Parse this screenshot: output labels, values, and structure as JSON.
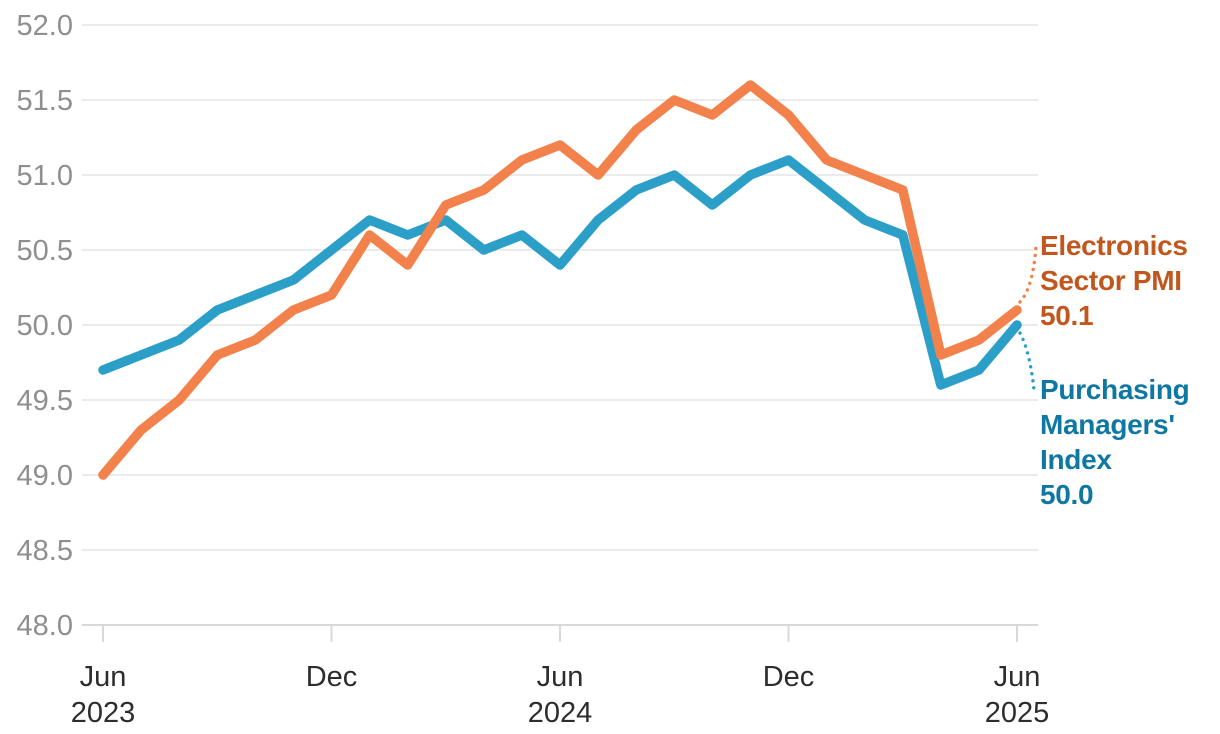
{
  "chart_data": {
    "type": "line",
    "x": [
      "Jun 2023",
      "Jul 2023",
      "Aug 2023",
      "Sep 2023",
      "Oct 2023",
      "Nov 2023",
      "Dec 2023",
      "Jan 2024",
      "Feb 2024",
      "Mar 2024",
      "Apr 2024",
      "May 2024",
      "Jun 2024",
      "Jul 2024",
      "Aug 2024",
      "Sep 2024",
      "Oct 2024",
      "Nov 2024",
      "Dec 2024",
      "Jan 2025",
      "Feb 2025",
      "Mar 2025",
      "Apr 2025",
      "May 2025",
      "Jun 2025"
    ],
    "series": [
      {
        "name": "Purchasing Managers' Index",
        "color": "#2B9FC7",
        "values": [
          49.7,
          49.8,
          49.9,
          50.1,
          50.2,
          50.3,
          50.5,
          50.7,
          50.6,
          50.7,
          50.5,
          50.6,
          50.4,
          50.7,
          50.9,
          51.0,
          50.8,
          51.0,
          51.1,
          50.9,
          50.7,
          50.6,
          49.6,
          49.7,
          50.0
        ]
      },
      {
        "name": "Electronics Sector PMI",
        "color": "#F2814B",
        "values": [
          49.0,
          49.3,
          49.5,
          49.8,
          49.9,
          50.1,
          50.2,
          50.6,
          50.4,
          50.8,
          50.9,
          51.1,
          51.2,
          51.0,
          51.3,
          51.5,
          51.4,
          51.6,
          51.4,
          51.1,
          51.0,
          50.9,
          49.8,
          49.9,
          50.1
        ]
      }
    ],
    "title": "",
    "xlabel": "",
    "ylabel": "",
    "ylim": [
      48.0,
      52.0
    ],
    "grid": true,
    "legend_position": "right-end-annotations",
    "y_ticks": [
      "52.0",
      "51.5",
      "51.0",
      "50.5",
      "50.0",
      "49.5",
      "49.0",
      "48.5",
      "48.0"
    ],
    "x_ticks": [
      {
        "month": "Jun",
        "year": "2023",
        "index": 0
      },
      {
        "month": "Dec",
        "year": "",
        "index": 6
      },
      {
        "month": "Jun",
        "year": "2024",
        "index": 12
      },
      {
        "month": "Dec",
        "year": "",
        "index": 18
      },
      {
        "month": "Jun",
        "year": "2025",
        "index": 24
      }
    ]
  },
  "annotations": {
    "electronics": {
      "line1": "Electronics",
      "line2": "Sector PMI",
      "value": "50.1",
      "color": "#C2571E",
      "end_value": 50.1
    },
    "pmi": {
      "line1": "Purchasing",
      "line2": "Managers'",
      "line3": "Index",
      "value": "50.0",
      "color": "#0F78A2",
      "end_value": 50.0
    }
  },
  "style_colors": {
    "gridline": "#EBEBEB",
    "axis_baseline": "#D8D8D8",
    "tick_mark": "#D8D8D8",
    "y_tick_label": "#8F8F8F",
    "x_tick_label": "#2D2D2D"
  }
}
